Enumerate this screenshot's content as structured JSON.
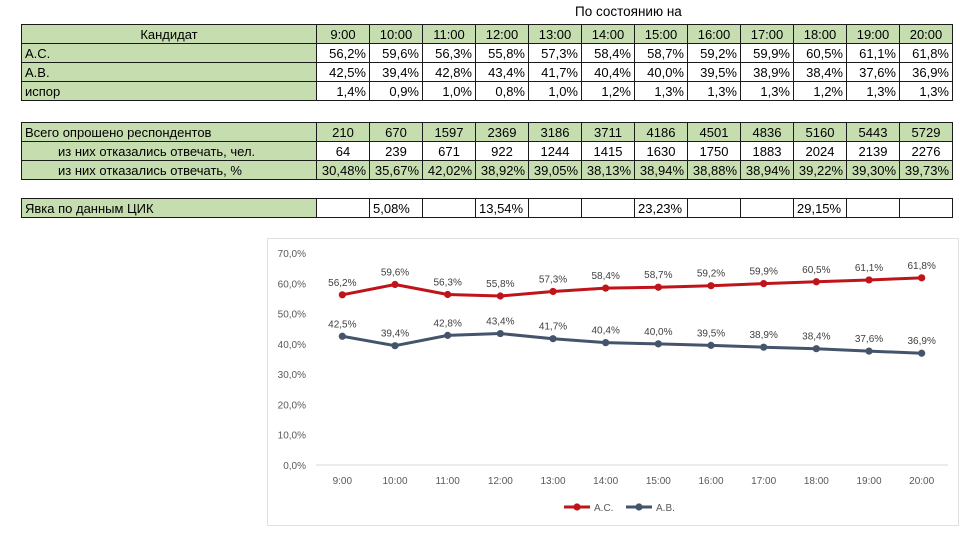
{
  "sheet": {
    "header_note": "По состоянию на",
    "header_label": "Кандидат",
    "times": [
      "9:00",
      "10:00",
      "11:00",
      "12:00",
      "13:00",
      "14:00",
      "15:00",
      "16:00",
      "17:00",
      "18:00",
      "19:00",
      "20:00"
    ],
    "candidates": [
      {
        "name": "А.С.",
        "values": [
          "56,2%",
          "59,6%",
          "56,3%",
          "55,8%",
          "57,3%",
          "58,4%",
          "58,7%",
          "59,2%",
          "59,9%",
          "60,5%",
          "61,1%",
          "61,8%"
        ]
      },
      {
        "name": "А.В.",
        "values": [
          "42,5%",
          "39,4%",
          "42,8%",
          "43,4%",
          "41,7%",
          "40,4%",
          "40,0%",
          "39,5%",
          "38,9%",
          "38,4%",
          "37,6%",
          "36,9%"
        ]
      },
      {
        "name": "испор",
        "values": [
          "1,4%",
          "0,9%",
          "1,0%",
          "0,8%",
          "1,0%",
          "1,2%",
          "1,3%",
          "1,3%",
          "1,3%",
          "1,2%",
          "1,3%",
          "1,3%"
        ]
      }
    ],
    "respondents": {
      "label": "Всего опрошено респондентов",
      "values": [
        "210",
        "670",
        "1597",
        "2369",
        "3186",
        "3711",
        "4186",
        "4501",
        "4836",
        "5160",
        "5443",
        "5729"
      ]
    },
    "refused_count": {
      "label": "из них отказались отвечать, чел.",
      "values": [
        "64",
        "239",
        "671",
        "922",
        "1244",
        "1415",
        "1630",
        "1750",
        "1883",
        "2024",
        "2139",
        "2276"
      ]
    },
    "refused_pct": {
      "label": "из них отказались отвечать, %",
      "values": [
        "30,48%",
        "35,67%",
        "42,02%",
        "38,92%",
        "39,05%",
        "38,13%",
        "38,94%",
        "38,88%",
        "38,94%",
        "39,22%",
        "39,30%",
        "39,73%"
      ]
    },
    "turnout": {
      "label": "Явка по данным ЦИК",
      "values": [
        "",
        "5,08%",
        "",
        "13,54%",
        "",
        "",
        "23,23%",
        "",
        "",
        "29,15%",
        "",
        ""
      ]
    }
  },
  "chart_data": {
    "type": "line",
    "x": [
      "9:00",
      "10:00",
      "11:00",
      "12:00",
      "13:00",
      "14:00",
      "15:00",
      "16:00",
      "17:00",
      "18:00",
      "19:00",
      "20:00"
    ],
    "ylim": [
      0,
      70
    ],
    "yticks": [
      "0,0%",
      "10,0%",
      "20,0%",
      "30,0%",
      "40,0%",
      "50,0%",
      "60,0%",
      "70,0%"
    ],
    "ytick_values": [
      0,
      10,
      20,
      30,
      40,
      50,
      60,
      70
    ],
    "grid": false,
    "legend": "bottom",
    "series": [
      {
        "name": "А.С.",
        "color": "#c0141b",
        "values": [
          56.2,
          59.6,
          56.3,
          55.8,
          57.3,
          58.4,
          58.7,
          59.2,
          59.9,
          60.5,
          61.1,
          61.8
        ],
        "labels": [
          "56,2%",
          "59,6%",
          "56,3%",
          "55,8%",
          "57,3%",
          "58,4%",
          "58,7%",
          "59,2%",
          "59,9%",
          "60,5%",
          "61,1%",
          "61,8%"
        ]
      },
      {
        "name": "А.В.",
        "color": "#44546a",
        "values": [
          42.5,
          39.4,
          42.8,
          43.4,
          41.7,
          40.4,
          40.0,
          39.5,
          38.9,
          38.4,
          37.6,
          36.9
        ],
        "labels": [
          "42,5%",
          "39,4%",
          "42,8%",
          "43,4%",
          "41,7%",
          "40,4%",
          "40,0%",
          "39,5%",
          "38,9%",
          "38,4%",
          "37,6%",
          "36,9%"
        ]
      }
    ]
  }
}
